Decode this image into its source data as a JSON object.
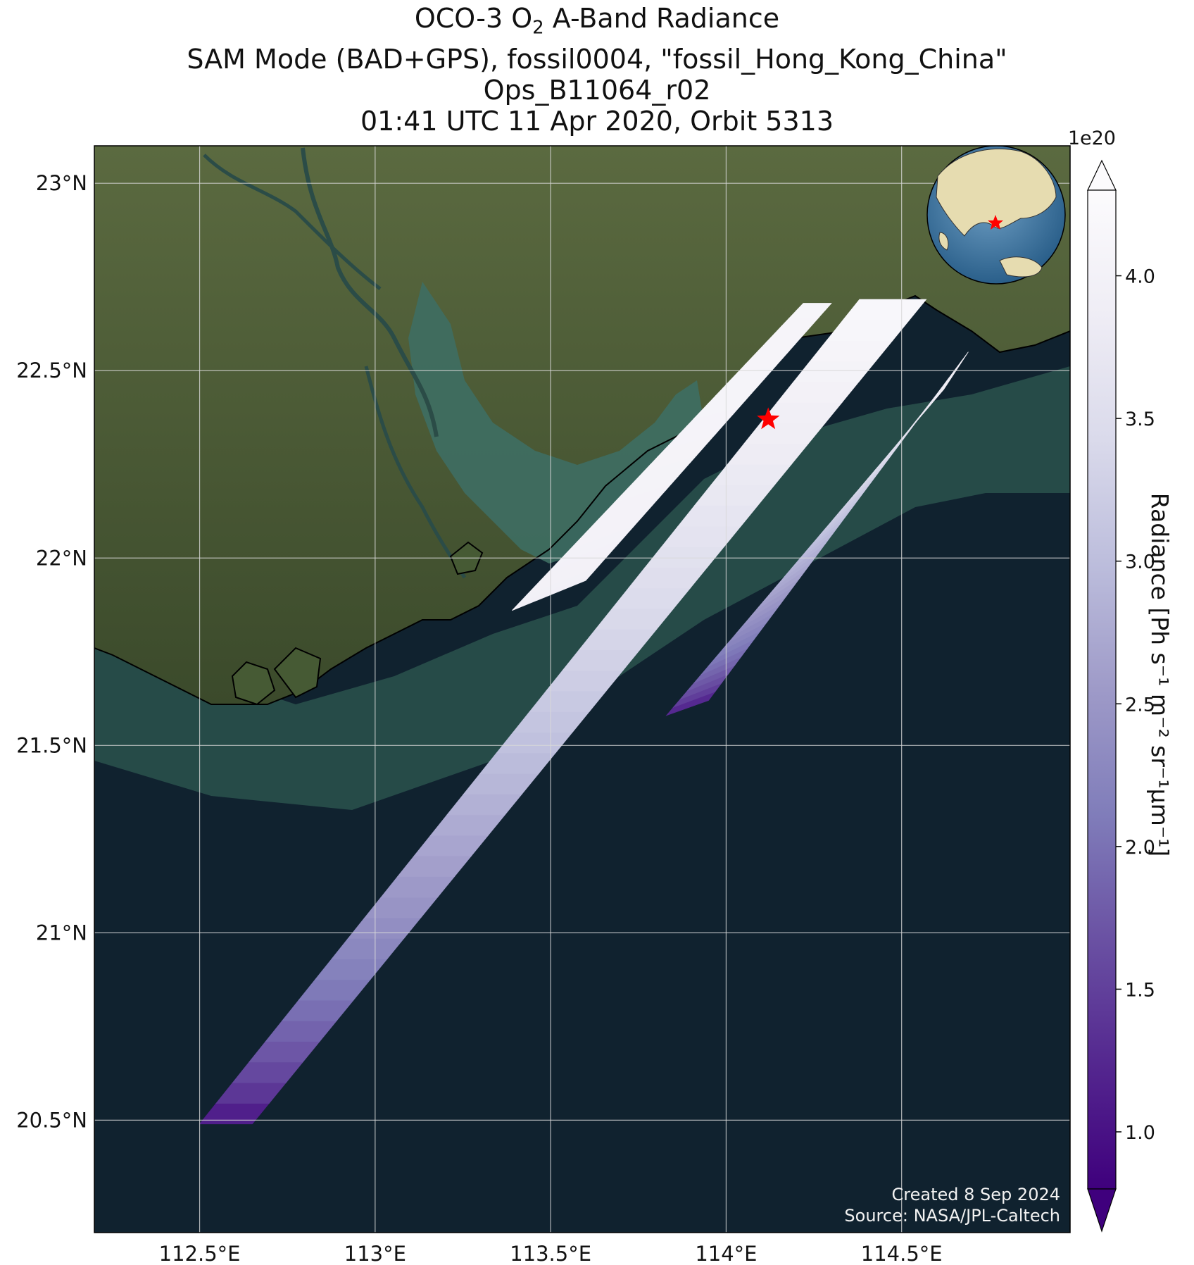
{
  "title": {
    "line1_pre": "OCO-3 O",
    "line1_sub": "2",
    "line1_post": " A-Band Radiance",
    "line2": "SAM Mode (BAD+GPS), fossil0004, \"fossil_Hong_Kong_China\"",
    "line3": "Ops_B11064_r02",
    "line4": "01:41 UTC 11 Apr 2020, Orbit 5313"
  },
  "map": {
    "lon_range": [
      112.2,
      114.98
    ],
    "lat_range": [
      20.2,
      23.1
    ],
    "lat_ticks": [
      {
        "value": 23.0,
        "label": "23°N"
      },
      {
        "value": 22.5,
        "label": "22.5°N"
      },
      {
        "value": 22.0,
        "label": "22°N"
      },
      {
        "value": 21.5,
        "label": "21.5°N"
      },
      {
        "value": 21.0,
        "label": "21°N"
      },
      {
        "value": 20.5,
        "label": "20.5°N"
      }
    ],
    "lon_ticks": [
      {
        "value": 112.5,
        "label": "112.5°E"
      },
      {
        "value": 113.0,
        "label": "113°E"
      },
      {
        "value": 113.5,
        "label": "113.5°E"
      },
      {
        "value": 114.0,
        "label": "114°E"
      },
      {
        "value": 114.5,
        "label": "114.5°E"
      }
    ],
    "target": {
      "name": "fossil_Hong_Kong_China",
      "lon": 114.12,
      "lat": 22.37,
      "marker_color": "#ff0000"
    },
    "colors": {
      "ocean": "#10222f",
      "land": "#4a5a36",
      "grid": "#d9d9d9",
      "coast": "#000000"
    }
  },
  "chart_data": {
    "type": "heatmap",
    "variable": "Radiance",
    "colormap": "Purples_r",
    "vmin": 0.8,
    "vmax": 4.3,
    "scale": "1e20",
    "swaths": [
      {
        "corners": [
          [
            113.39,
            21.86
          ],
          [
            113.6,
            21.94
          ],
          [
            114.3,
            22.68
          ],
          [
            114.22,
            22.68
          ]
        ],
        "value_start": 3.95,
        "value_end": 4.1
      },
      {
        "corners": [
          [
            112.5,
            20.49
          ],
          [
            112.65,
            20.49
          ],
          [
            114.57,
            22.69
          ],
          [
            114.38,
            22.69
          ]
        ],
        "value_start": 0.85,
        "value_end": 4.2
      },
      {
        "corners": [
          [
            113.83,
            21.58
          ],
          [
            113.95,
            21.62
          ],
          [
            114.69,
            22.55
          ],
          [
            114.62,
            22.45
          ]
        ],
        "value_start": 1.0,
        "value_end": 3.9
      }
    ]
  },
  "colorbar": {
    "label": "Radiance [Ph s⁻¹ m⁻² sr⁻¹μm⁻¹]",
    "exponent": "1e20",
    "ticks": [
      "1.0",
      "1.5",
      "2.0",
      "2.5",
      "3.0",
      "3.5",
      "4.0"
    ],
    "tick_values": [
      1.0,
      1.5,
      2.0,
      2.5,
      3.0,
      3.5,
      4.0
    ],
    "min": 0.8,
    "max": 4.3,
    "colors": [
      "#3f007d",
      "#54278f",
      "#6a51a3",
      "#807dba",
      "#9e9ac8",
      "#bcbddc",
      "#dadaeb",
      "#efedf5",
      "#fcfbfd"
    ]
  },
  "credits": {
    "created": "Created 8 Sep 2024",
    "source": "Source: NASA/JPL-Caltech"
  }
}
